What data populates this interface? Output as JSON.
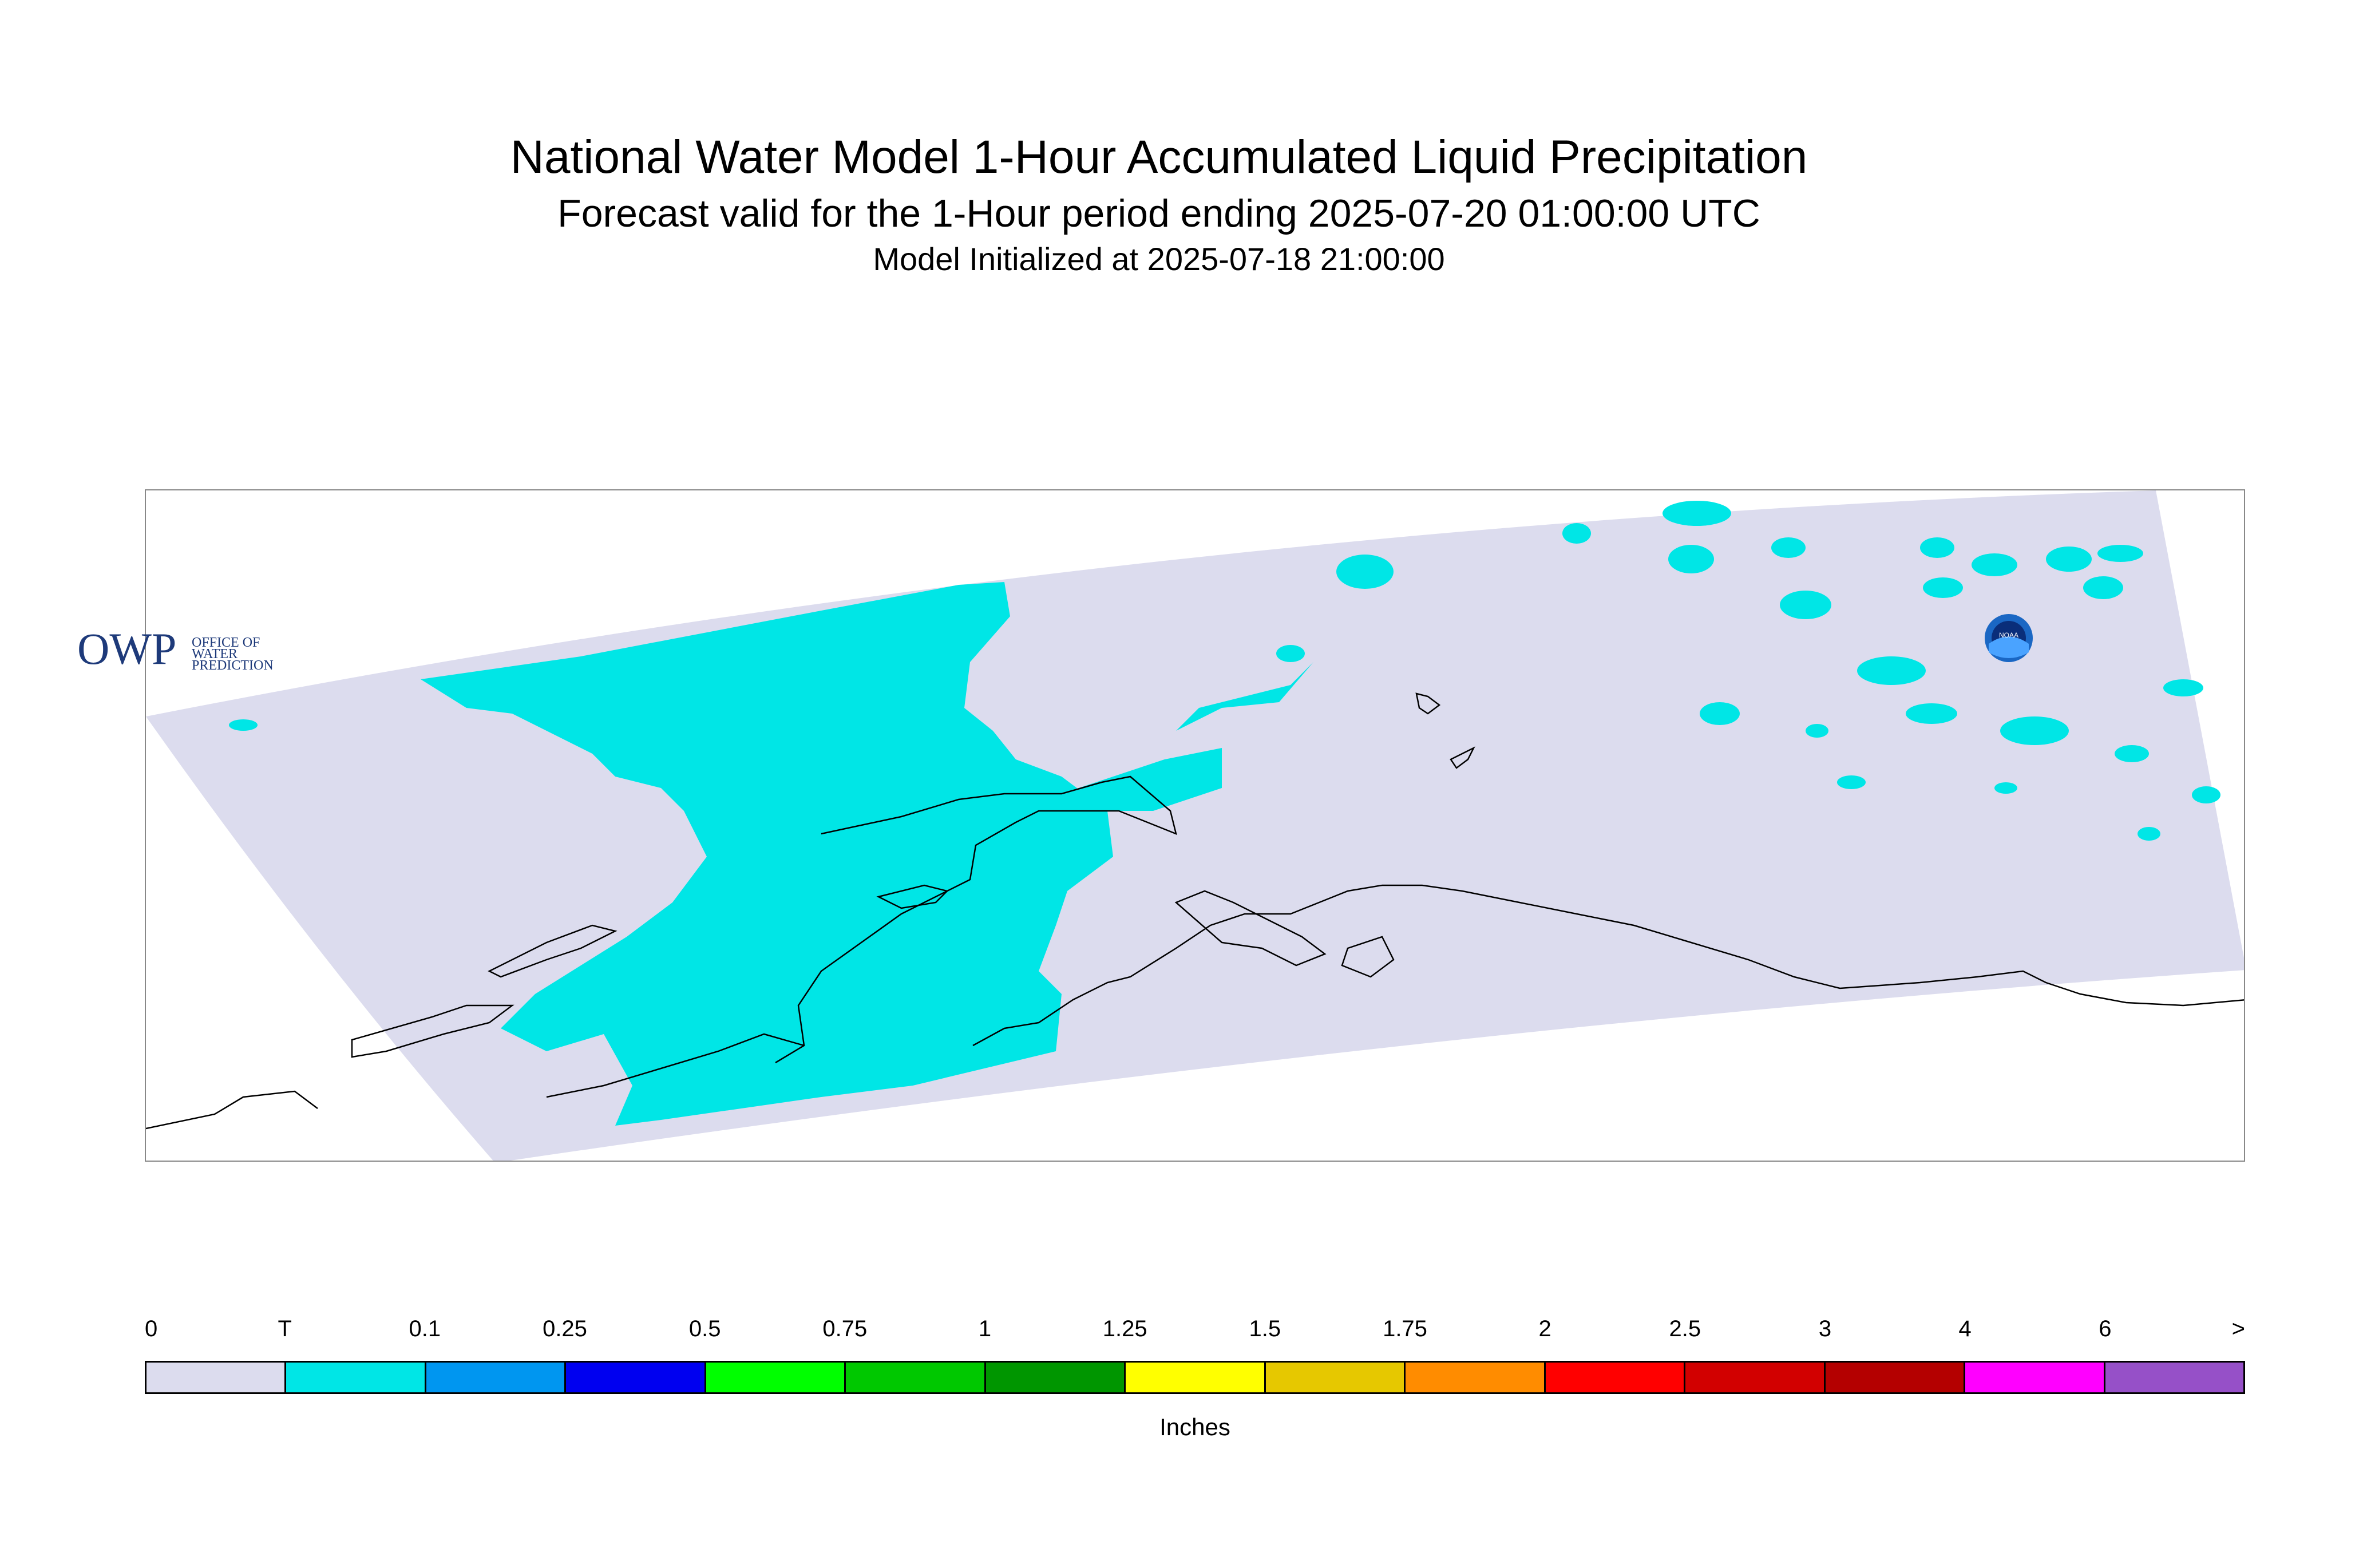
{
  "title": "National Water Model 1-Hour Accumulated Liquid Precipitation",
  "subtitle": "Forecast valid for the 1-Hour period ending 2025-07-20 01:00:00 UTC",
  "init": "Model Initialized at 2025-07-18 21:00:00",
  "logos": {
    "owp_text": "OWP",
    "owp_sub1": "OFFICE OF",
    "owp_sub2": "WATER",
    "owp_sub3": "PREDICTION",
    "noaa_text": "NOAA"
  },
  "legend": {
    "labels": [
      "0",
      "T",
      "0.1",
      "0.25",
      "0.5",
      "0.75",
      "1",
      "1.25",
      "1.5",
      "1.75",
      "2",
      "2.5",
      "3",
      "4",
      "6",
      ">"
    ],
    "colors": [
      "#dcdcee",
      "#00e6e6",
      "#0096f0",
      "#0000f0",
      "#00ff00",
      "#00c800",
      "#009600",
      "#ffff00",
      "#e6c800",
      "#ff8c00",
      "#ff0000",
      "#d20000",
      "#b40000",
      "#ff00ff",
      "#9650c8"
    ],
    "units": "Inches"
  },
  "colors": {
    "domain_fill": "#dcdcee",
    "trace_fill": "#00e6e6",
    "coast_line": "#000000"
  }
}
